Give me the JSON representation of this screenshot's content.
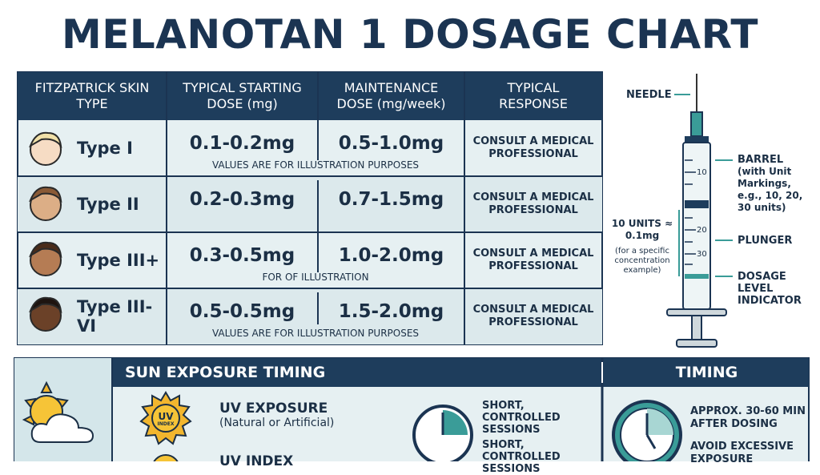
{
  "title": "MELANOTAN 1 DOSAGE CHART",
  "table": {
    "headers": [
      "FITZPATRICK SKIN TYPE",
      "TYPICAL STARTING DOSE (mg)",
      "MAINTENANCE DOSE (mg/week)",
      "TYPICAL RESPONSE"
    ],
    "rows": [
      {
        "type": "Type I",
        "start": "0.1-0.2mg",
        "maintenance": "0.5-1.0mg",
        "response": "CONSULT A MEDICAL PROFESSIONAL",
        "note": "VALUES ARE FOR ILLUSTRATION PURPOSES"
      },
      {
        "type": "Type II",
        "start": "0.2-0.3mg",
        "maintenance": "0.7-1.5mg",
        "response": "CONSULT A MEDICAL PROFESSIONAL"
      },
      {
        "type": "Type III+",
        "start": "0.3-0.5mg",
        "maintenance": "1.0-2.0mg",
        "response": "CONSULT A MEDICAL PROFESSIONAL",
        "note": "FOR OF ILLUSTRATION"
      },
      {
        "type": "Type III-VI",
        "start": "0.5-0.5mg",
        "maintenance": "1.5-2.0mg",
        "response": "CONSULT A MEDICAL PROFESSIONAL",
        "note": "VALUES ARE FOR ILLUSTRATION PURPOSES"
      }
    ]
  },
  "syringe": {
    "needle": "NEEDLE",
    "barrel": "BARREL",
    "barrel_note": "(with Unit Markings, e.g., 10, 20, 30 units)",
    "plunger": "PLUNGER",
    "indicator": "DOSAGE LEVEL INDICATOR",
    "units": "10 UNITS ≈ 0.1mg",
    "units_note": "(for a specific concentration example)",
    "marks": [
      "10",
      "20",
      "30"
    ]
  },
  "sun": {
    "heading": "SUN EXPOSURE TIMING",
    "badge": [
      "UV",
      "INDEX"
    ],
    "items": [
      {
        "title": "UV EXPOSURE",
        "sub": "(Natural or Artificial)"
      },
      {
        "title": "UV INDEX"
      }
    ],
    "sessions": [
      "SHORT, CONTROLLED SESSIONS",
      "SHORT, CONTROLLED SESSIONS"
    ]
  },
  "timing": {
    "heading": "TIMING",
    "items": [
      "APPROX. 30-60 MIN AFTER DOSING",
      "AVOID EXCESSIVE EXPOSURE"
    ]
  }
}
